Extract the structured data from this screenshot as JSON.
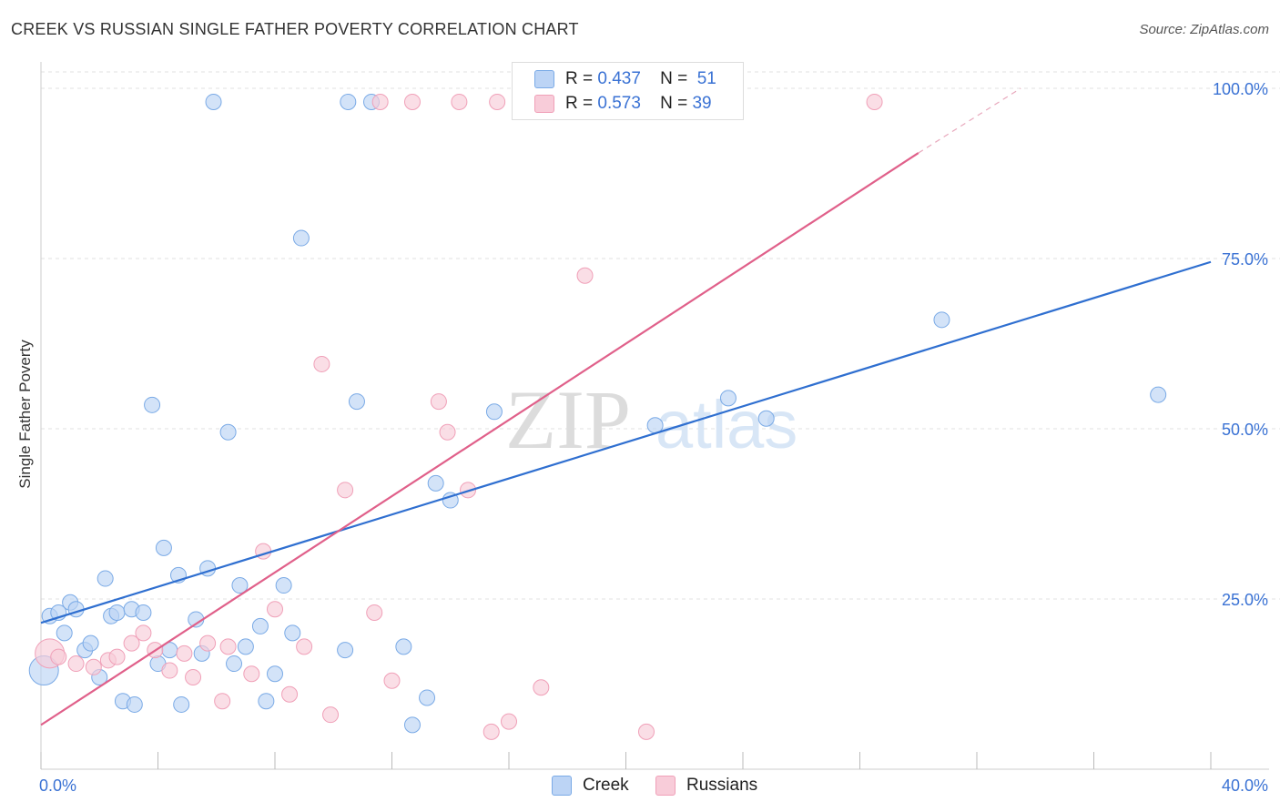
{
  "chart_data": {
    "type": "scatter",
    "title": "CREEK VS RUSSIAN SINGLE FATHER POVERTY CORRELATION CHART",
    "source": "Source: ZipAtlas.com",
    "xlabel": "",
    "ylabel": "Single Father Poverty",
    "xlim": [
      0,
      40
    ],
    "ylim": [
      0,
      100
    ],
    "x_tick_labels": [
      "0.0%",
      "40.0%"
    ],
    "y_tick_labels": [
      "25.0%",
      "50.0%",
      "75.0%",
      "100.0%"
    ],
    "y_ticks": [
      25,
      50,
      75,
      100
    ],
    "watermark": {
      "zip": "ZIP",
      "atlas": "atlas"
    },
    "legend": [
      {
        "r_label": "R =",
        "r_value": "0.437",
        "n_label": "N =",
        "n_value": "51"
      },
      {
        "r_label": "R =",
        "r_value": "0.573",
        "n_label": "N =",
        "n_value": "39"
      }
    ],
    "series": [
      {
        "name": "Creek",
        "color": "#7aaae6",
        "fill": "#bcd4f5",
        "line_color": "#2f6fd0",
        "trend": {
          "x0": 0,
          "y0": 21.5,
          "x1": 40,
          "y1": 74.5
        },
        "points": [
          [
            0.1,
            14.5
          ],
          [
            0.3,
            22.5
          ],
          [
            0.6,
            23.0
          ],
          [
            0.8,
            20.0
          ],
          [
            1.0,
            24.5
          ],
          [
            1.2,
            23.5
          ],
          [
            1.5,
            17.5
          ],
          [
            1.7,
            18.5
          ],
          [
            2.0,
            13.5
          ],
          [
            2.2,
            28.0
          ],
          [
            2.4,
            22.5
          ],
          [
            2.6,
            23.0
          ],
          [
            2.8,
            10.0
          ],
          [
            3.1,
            23.5
          ],
          [
            3.2,
            9.5
          ],
          [
            3.5,
            23.0
          ],
          [
            3.8,
            53.5
          ],
          [
            4.0,
            15.5
          ],
          [
            4.2,
            32.5
          ],
          [
            4.4,
            17.5
          ],
          [
            4.7,
            28.5
          ],
          [
            4.8,
            9.5
          ],
          [
            5.3,
            22.0
          ],
          [
            5.5,
            17.0
          ],
          [
            5.7,
            29.5
          ],
          [
            5.9,
            98.0
          ],
          [
            6.4,
            49.5
          ],
          [
            6.6,
            15.5
          ],
          [
            6.8,
            27.0
          ],
          [
            7.0,
            18.0
          ],
          [
            7.5,
            21.0
          ],
          [
            7.7,
            10.0
          ],
          [
            8.0,
            14.0
          ],
          [
            8.3,
            27.0
          ],
          [
            8.6,
            20.0
          ],
          [
            8.9,
            78.0
          ],
          [
            10.4,
            17.5
          ],
          [
            10.5,
            98.0
          ],
          [
            10.8,
            54.0
          ],
          [
            11.3,
            98.0
          ],
          [
            12.4,
            18.0
          ],
          [
            12.7,
            6.5
          ],
          [
            13.2,
            10.5
          ],
          [
            13.5,
            42.0
          ],
          [
            14.0,
            39.5
          ],
          [
            15.5,
            52.5
          ],
          [
            21.0,
            50.5
          ],
          [
            23.5,
            54.5
          ],
          [
            24.8,
            51.5
          ],
          [
            30.8,
            66.0
          ],
          [
            38.2,
            55.0
          ]
        ]
      },
      {
        "name": "Russians",
        "color": "#f0a0b8",
        "fill": "#f8ccd9",
        "line_color": "#e0608a",
        "trend": {
          "x0": 0,
          "y0": 6.5,
          "x1": 30,
          "y1": 90.5
        },
        "trend_ext": {
          "x0": 30,
          "y0": 90.5,
          "x1": 33.5,
          "y1": 100
        },
        "points": [
          [
            0.3,
            17.0
          ],
          [
            0.6,
            16.5
          ],
          [
            1.2,
            15.5
          ],
          [
            1.8,
            15.0
          ],
          [
            2.3,
            16.0
          ],
          [
            2.6,
            16.5
          ],
          [
            3.1,
            18.5
          ],
          [
            3.5,
            20.0
          ],
          [
            3.9,
            17.5
          ],
          [
            4.4,
            14.5
          ],
          [
            4.9,
            17.0
          ],
          [
            5.2,
            13.5
          ],
          [
            5.7,
            18.5
          ],
          [
            6.2,
            10.0
          ],
          [
            6.4,
            18.0
          ],
          [
            7.2,
            14.0
          ],
          [
            7.6,
            32.0
          ],
          [
            8.0,
            23.5
          ],
          [
            8.5,
            11.0
          ],
          [
            9.0,
            18.0
          ],
          [
            9.6,
            59.5
          ],
          [
            9.9,
            8.0
          ],
          [
            10.4,
            41.0
          ],
          [
            11.4,
            23.0
          ],
          [
            11.6,
            98.0
          ],
          [
            12.0,
            13.0
          ],
          [
            12.7,
            98.0
          ],
          [
            13.6,
            54.0
          ],
          [
            13.9,
            49.5
          ],
          [
            14.3,
            98.0
          ],
          [
            14.6,
            41.0
          ],
          [
            15.4,
            5.5
          ],
          [
            15.6,
            98.0
          ],
          [
            16.0,
            7.0
          ],
          [
            16.8,
            98.0
          ],
          [
            17.1,
            12.0
          ],
          [
            18.6,
            72.5
          ],
          [
            20.7,
            5.5
          ],
          [
            28.5,
            98.0
          ]
        ]
      }
    ],
    "bottom_legend": [
      "Creek",
      "Russians"
    ]
  }
}
